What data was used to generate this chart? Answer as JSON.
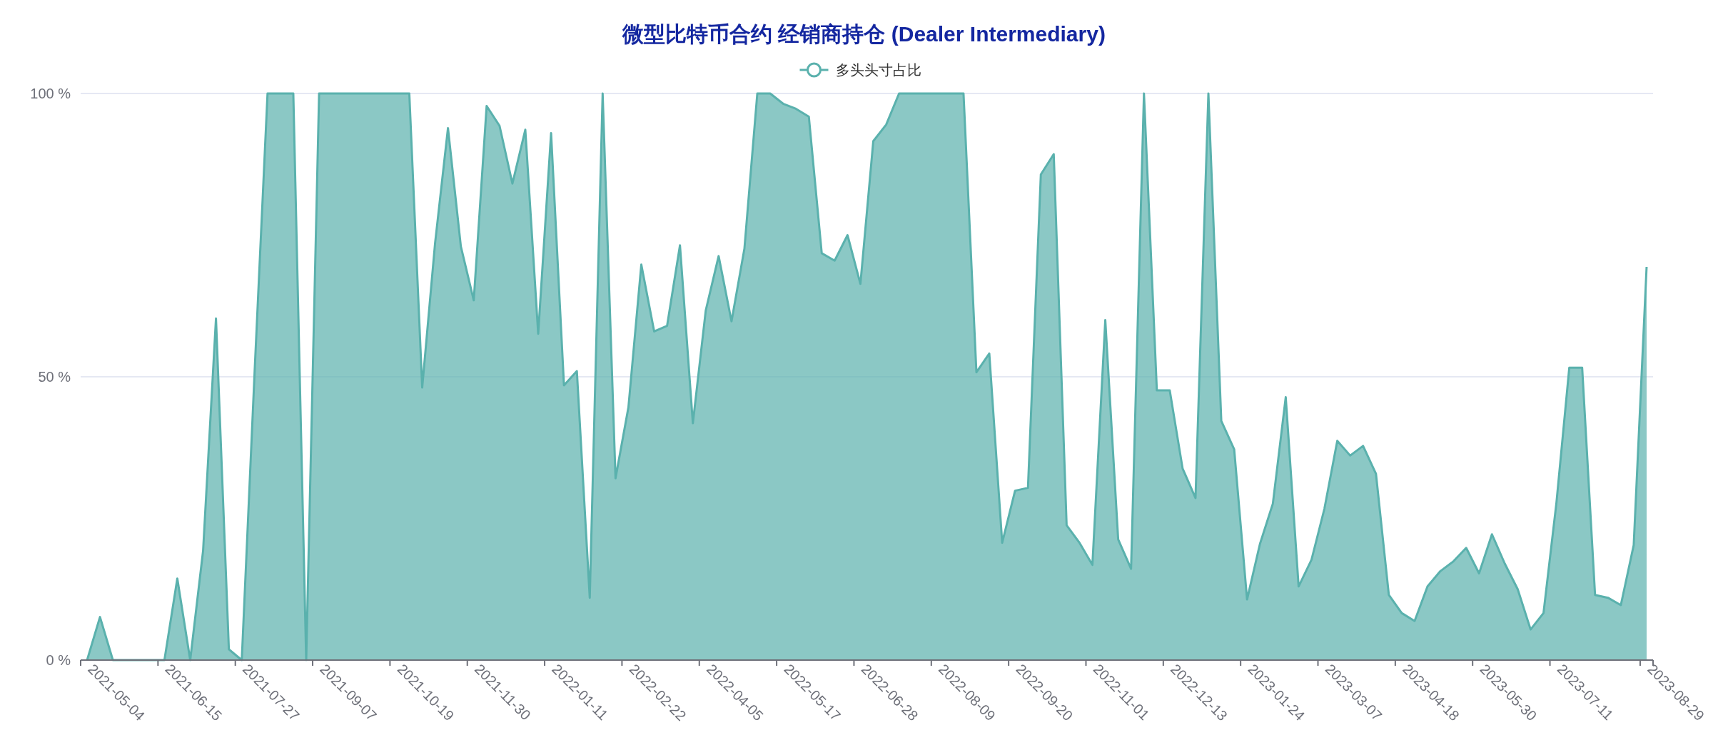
{
  "chart_data": {
    "type": "area",
    "title": "微型比特币合约 经销商持仓 (Dealer Intermediary)",
    "categories": [
      "2021-05-04",
      null,
      null,
      null,
      null,
      null,
      "2021-06-15",
      null,
      null,
      null,
      null,
      null,
      "2021-07-27",
      null,
      null,
      null,
      null,
      null,
      "2021-09-07",
      null,
      null,
      null,
      null,
      null,
      "2021-10-19",
      null,
      null,
      null,
      null,
      null,
      "2021-11-30",
      null,
      null,
      null,
      null,
      null,
      "2022-01-11",
      null,
      null,
      null,
      null,
      null,
      "2022-02-22",
      null,
      null,
      null,
      null,
      null,
      "2022-04-05",
      null,
      null,
      null,
      null,
      null,
      "2022-05-17",
      null,
      null,
      null,
      null,
      null,
      "2022-06-28",
      null,
      null,
      null,
      null,
      null,
      "2022-08-09",
      null,
      null,
      null,
      null,
      null,
      "2022-09-20",
      null,
      null,
      null,
      null,
      null,
      "2022-11-01",
      null,
      null,
      null,
      null,
      null,
      "2022-12-13",
      null,
      null,
      null,
      null,
      null,
      "2023-01-24",
      null,
      null,
      null,
      null,
      null,
      "2023-03-07",
      null,
      null,
      null,
      null,
      null,
      "2023-04-18",
      null,
      null,
      null,
      null,
      null,
      "2023-05-30",
      null,
      null,
      null,
      null,
      null,
      "2023-07-11",
      null,
      null,
      null,
      null,
      null,
      null,
      "2023-08-29"
    ],
    "series": [
      {
        "name": "多头头寸占比",
        "color": "#5ab1ad",
        "values": [
          0,
          7.6,
          0,
          0,
          0,
          0,
          0,
          14.4,
          0,
          19.3,
          60.3,
          1.9,
          0,
          51,
          100,
          100,
          100,
          0,
          100,
          100,
          100,
          100,
          100,
          100,
          100,
          100,
          48.1,
          73.6,
          93.9,
          73,
          63.5,
          97.8,
          94.3,
          84.1,
          93.6,
          57.6,
          93,
          48.5,
          51,
          11,
          100,
          32.1,
          44.6,
          69.8,
          58,
          59,
          73.2,
          41.8,
          61.7,
          71.3,
          59.8,
          72.6,
          100,
          100,
          98.2,
          97.3,
          95.9,
          71.8,
          70.5,
          75,
          66.4,
          91.6,
          94.5,
          100,
          100,
          100,
          100,
          100,
          100,
          50.8,
          54.1,
          20.7,
          29.9,
          30.4,
          85.7,
          89.3,
          23.8,
          20.7,
          16.8,
          60,
          21.3,
          16.1,
          100,
          47.6,
          47.6,
          33.8,
          28.6,
          100,
          42.2,
          37.2,
          10.7,
          20.5,
          27.6,
          46.4,
          13,
          17.7,
          26.7,
          38.7,
          36.1,
          37.8,
          32.9,
          11.5,
          8.3,
          6.9,
          13,
          15.7,
          17.4,
          19.8,
          15.3,
          22.2,
          17,
          12.5,
          5.4,
          8.3,
          27.7,
          51.6,
          51.6,
          11.5,
          11,
          9.7,
          20.3,
          69.4
        ]
      }
    ],
    "ylim": [
      0,
      100
    ],
    "yticks": [
      {
        "value": 0,
        "label": "0 %"
      },
      {
        "value": 50,
        "label": "50 %"
      },
      {
        "value": 100,
        "label": "100 %"
      }
    ],
    "grid": "y",
    "legend": "top",
    "marker": "none"
  }
}
